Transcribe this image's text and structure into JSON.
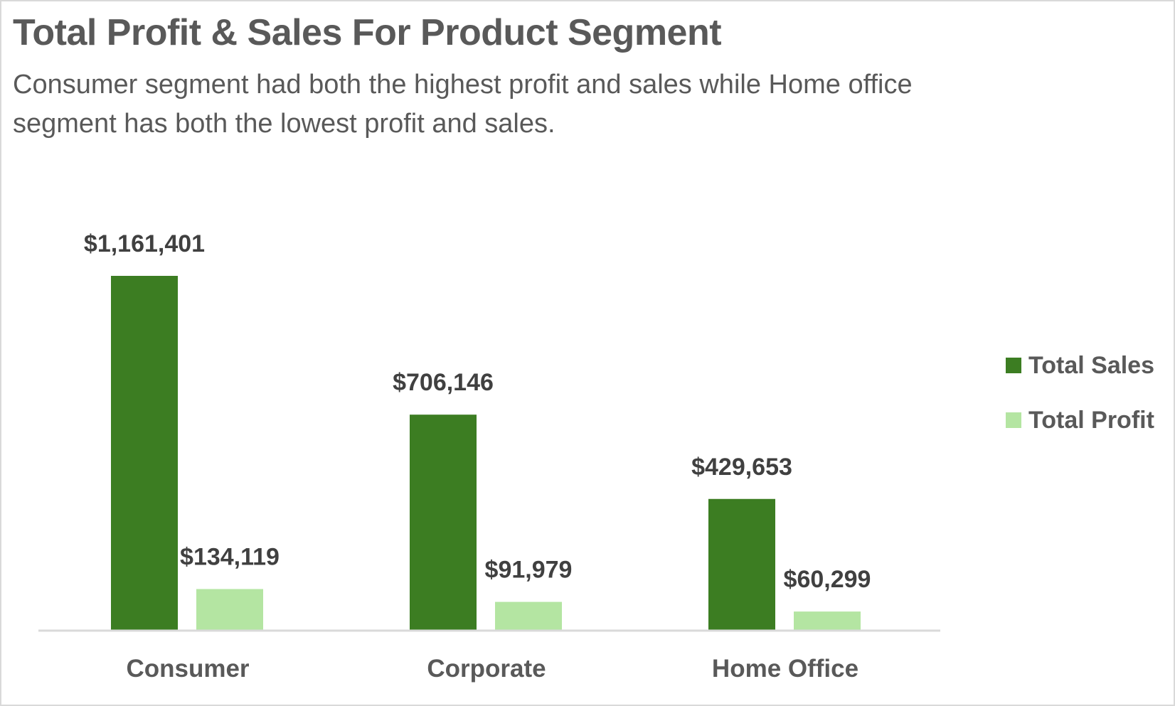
{
  "colors": {
    "sales": "#3c7d22",
    "profit": "#b4e5a2",
    "text": "#595959",
    "label_text": "#404040",
    "axis": "#d9d9d9"
  },
  "chart_data": {
    "type": "bar",
    "title": "Total Profit & Sales For Product Segment",
    "subtitle": "Consumer segment had both the highest profit and sales while Home office segment has both the lowest profit and sales.",
    "categories": [
      "Consumer",
      "Corporate",
      "Home Office"
    ],
    "series": [
      {
        "name": "Total Sales",
        "values": [
          1161401,
          706146,
          429653
        ],
        "labels": [
          "$1,161,401",
          "$706,146",
          "$429,653"
        ]
      },
      {
        "name": "Total Profit",
        "values": [
          134119,
          91979,
          60299
        ],
        "labels": [
          "$134,119",
          "$91,979",
          "$60,299"
        ]
      }
    ],
    "legend_position": "right",
    "grid": false,
    "ylim": [
      0,
      1161401
    ]
  }
}
